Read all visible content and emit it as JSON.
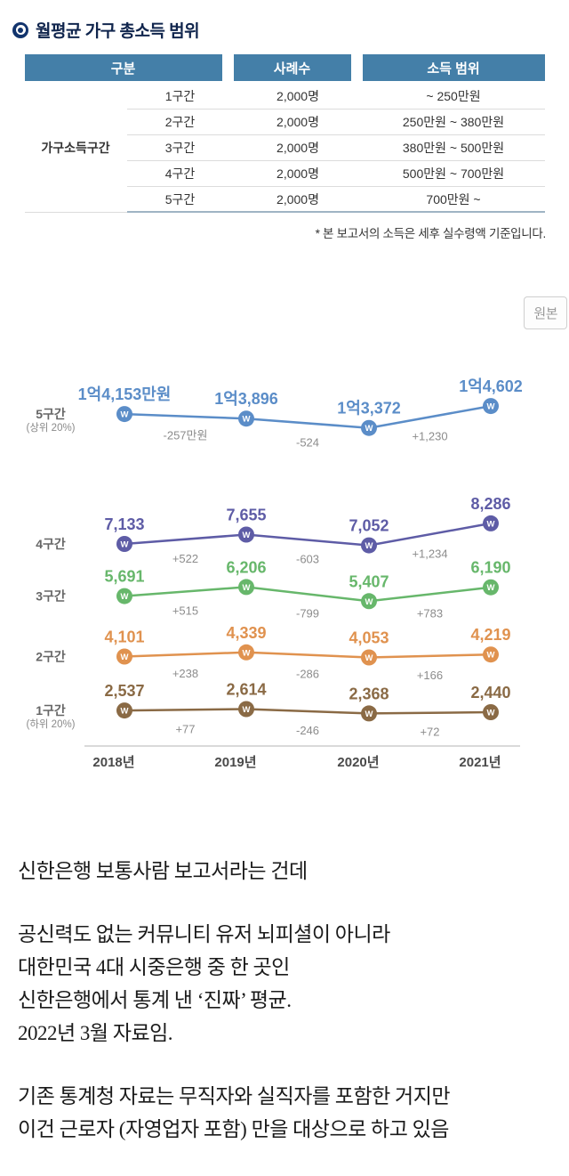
{
  "page": {
    "title": "월평균 가구 총소득 범위"
  },
  "table": {
    "headers": [
      "구분",
      "사례수",
      "소득 범위"
    ],
    "group_label": "가구소득구간",
    "rows": [
      [
        "1구간",
        "2,000명",
        "~ 250만원"
      ],
      [
        "2구간",
        "2,000명",
        "250만원 ~ 380만원"
      ],
      [
        "3구간",
        "2,000명",
        "380만원 ~ 500만원"
      ],
      [
        "4구간",
        "2,000명",
        "500만원 ~ 700만원"
      ],
      [
        "5구간",
        "2,000명",
        "700만원 ~"
      ]
    ],
    "footnote": "* 본 보고서의 소득은 세후 실수령액 기준입니다."
  },
  "original_button_label": "원본",
  "chart_data": {
    "type": "line",
    "x": [
      "2018년",
      "2019년",
      "2020년",
      "2021년"
    ],
    "unit": "만원",
    "grid": false,
    "legend_position": "left-of-lines",
    "marker_glyph": "W",
    "series": [
      {
        "name": "5구간",
        "subname": "(상위 20%)",
        "color": "#5b8dc8",
        "values": [
          14153,
          13896,
          13372,
          14602
        ],
        "labels": [
          "1억4,153만원",
          "1억3,896",
          "1억3,372",
          "1억4,602"
        ],
        "deltas": [
          "-257만원",
          "-524",
          "+1,230"
        ]
      },
      {
        "name": "4구간",
        "subname": "",
        "color": "#5e5ca6",
        "values": [
          7133,
          7655,
          7052,
          8286
        ],
        "labels": [
          "7,133",
          "7,655",
          "7,052",
          "8,286"
        ],
        "deltas": [
          "+522",
          "-603",
          "+1,234"
        ]
      },
      {
        "name": "3구간",
        "subname": "",
        "color": "#67b76b",
        "values": [
          5691,
          6206,
          5407,
          6190
        ],
        "labels": [
          "5,691",
          "6,206",
          "5,407",
          "6,190"
        ],
        "deltas": [
          "+515",
          "-799",
          "+783"
        ]
      },
      {
        "name": "2구간",
        "subname": "",
        "color": "#e0924f",
        "values": [
          4101,
          4339,
          4053,
          4219
        ],
        "labels": [
          "4,101",
          "4,339",
          "4,053",
          "4,219"
        ],
        "deltas": [
          "+238",
          "-286",
          "+166"
        ]
      },
      {
        "name": "1구간",
        "subname": "(하위 20%)",
        "color": "#8a6a45",
        "values": [
          2537,
          2614,
          2368,
          2440
        ],
        "labels": [
          "2,537",
          "2,614",
          "2,368",
          "2,440"
        ],
        "deltas": [
          "+77",
          "-246",
          "+72"
        ]
      }
    ]
  },
  "body_text": {
    "paragraphs": [
      {
        "lines": [
          "신한은행 보통사람 보고서라는 건데"
        ]
      },
      {
        "lines": [
          "공신력도 없는 커뮤니티 유저 뇌피셜이 아니라",
          "대한민국 4대 시중은행 중 한 곳인",
          "신한은행에서 통계 낸 ‘진짜’ 평균.",
          "2022년 3월 자료임."
        ]
      },
      {
        "lines": [
          "기존 통계청 자료는 무직자와 실직자를 포함한 거지만",
          "이건 근로자 (자영업자 포함) 만을 대상으로 하고 있음"
        ]
      }
    ]
  }
}
